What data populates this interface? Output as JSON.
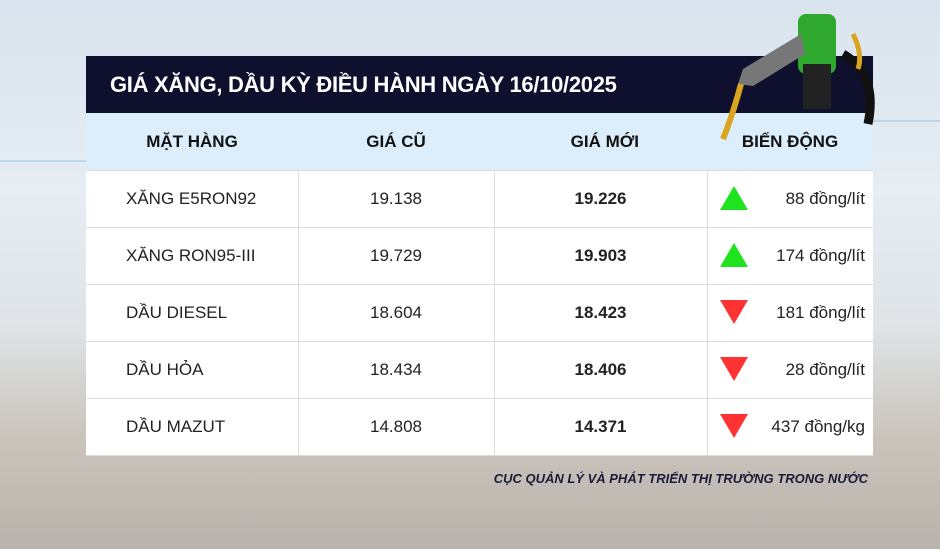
{
  "title": "GIÁ XĂNG, DẦU KỲ ĐIỀU HÀNH NGÀY 16/10/2025",
  "columns": [
    "MẶT HÀNG",
    "GIÁ CŨ",
    "GIÁ MỚI",
    "BIẾN ĐỘNG"
  ],
  "rows": [
    {
      "name": "XĂNG E5RON92",
      "old": "19.138",
      "new": "19.226",
      "change": "88 đồng/lít",
      "direction": "up"
    },
    {
      "name": "XĂNG RON95-III",
      "old": "19.729",
      "new": "19.903",
      "change": "174 đồng/lít",
      "direction": "up"
    },
    {
      "name": "DẦU DIESEL",
      "old": "18.604",
      "new": "18.423",
      "change": "181 đồng/lít",
      "direction": "down"
    },
    {
      "name": "DẦU HỎA",
      "old": "18.434",
      "new": "18.406",
      "change": "28 đồng/lít",
      "direction": "down"
    },
    {
      "name": "DẦU MAZUT",
      "old": "14.808",
      "new": "14.371",
      "change": "437 đồng/kg",
      "direction": "down"
    }
  ],
  "source": "CỤC QUẢN LÝ VÀ PHÁT TRIỂN THỊ TRƯỜNG TRONG NƯỚC",
  "colors": {
    "header_bg": "#0f0f2e",
    "column_header_bg": "#dceefb",
    "up": "#1ee31e",
    "down": "#ff3333"
  },
  "icons": {
    "up": "triangle-up-icon",
    "down": "triangle-down-icon",
    "decoration": "fuel-nozzle-icon"
  }
}
